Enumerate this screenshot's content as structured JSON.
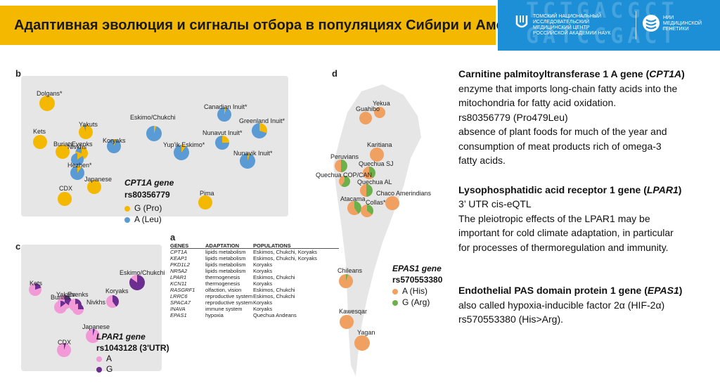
{
  "header": {
    "title": "Адаптивная эволюция и сигналы отбора в популяциях Сибири и Америки",
    "dna_text": "TCTGACGCT\nGATCCGACT\nGTGACGACG",
    "center_name": "ТОМСКИЙ НАЦИОНАЛЬНЫЙ ИССЛЕДОВАТЕЛЬСКИЙ МЕДИЦИНСКИЙ ЦЕНТР РОССИЙСКОЙ АКАДЕМИИ НАУК",
    "nia_name": "НИИ МЕДИЦИНСКОЙ ГЕНЕТИКИ"
  },
  "colors": {
    "title_bar": "#f5b800",
    "brand": "#1d8fd6",
    "pro": "#f5b800",
    "leu": "#5a9ad5",
    "A_lpar": "#f29ad8",
    "G_lpar": "#6b2d8f",
    "his": "#f0a060",
    "arg": "#6cb04a"
  },
  "panel_b": {
    "label": "b",
    "gene": "CPT1A gene",
    "snp": "rs80356779",
    "legend": [
      "G (Pro)",
      "A (Leu)"
    ],
    "pops": [
      {
        "name": "Dolgans*",
        "G": 1.0
      },
      {
        "name": "Kets",
        "G": 1.0
      },
      {
        "name": "Yakuts",
        "G": 0.95
      },
      {
        "name": "Buriats",
        "G": 1.0
      },
      {
        "name": "Evenks",
        "G": 0.8
      },
      {
        "name": "Nivkhs",
        "G": 0.15
      },
      {
        "name": "Hezhen*",
        "G": 0.1
      },
      {
        "name": "Koryaks",
        "G": 0.05
      },
      {
        "name": "Eskimo/Chukchi",
        "G": 0.05
      },
      {
        "name": "Japanese",
        "G": 1.0
      },
      {
        "name": "CDX",
        "G": 1.0
      },
      {
        "name": "Yup'ik Eskimo*",
        "G": 0.1
      },
      {
        "name": "Canadian Inuit*",
        "G": 0.05
      },
      {
        "name": "Nunavut Inuit*",
        "G": 0.25
      },
      {
        "name": "Greenland Inuit*",
        "G": 0.3
      },
      {
        "name": "Nunavik Inuit*",
        "G": 0.05
      },
      {
        "name": "Pima",
        "G": 1.0
      }
    ]
  },
  "panel_c": {
    "label": "c",
    "gene": "LPAR1 gene",
    "snp": "rs1043128 (3'UTR)",
    "legend": [
      "A",
      "G"
    ],
    "pops": [
      {
        "name": "Kets",
        "G": 0.2
      },
      {
        "name": "Yakuts",
        "G": 0.35
      },
      {
        "name": "Eskimo/Chukchi",
        "G": 0.85
      },
      {
        "name": "Buriats",
        "G": 0.15
      },
      {
        "name": "Evenks",
        "G": 0.3
      },
      {
        "name": "Nivkhs",
        "G": 0.25
      },
      {
        "name": "Koryaks",
        "G": 0.4
      },
      {
        "name": "Japanese",
        "G": 0.05
      },
      {
        "name": "CDX",
        "G": 0.05
      }
    ]
  },
  "panel_d": {
    "label": "d",
    "gene": "EPAS1 gene",
    "snp": "rs570553380",
    "legend": [
      "A (His)",
      "G (Arg)"
    ],
    "pops": [
      {
        "name": "Yekua",
        "G": 0.0
      },
      {
        "name": "Guahibo",
        "G": 0.0
      },
      {
        "name": "Karitiana",
        "G": 0.0
      },
      {
        "name": "Peruvians",
        "G": 0.5
      },
      {
        "name": "Quechua SJ",
        "G": 0.4
      },
      {
        "name": "Quechua COP/CAN",
        "G": 0.6
      },
      {
        "name": "Quechua AL",
        "G": 0.5
      },
      {
        "name": "Atacama",
        "G": 0.4
      },
      {
        "name": "Collas*",
        "G": 0.35
      },
      {
        "name": "Chaco Amerindians",
        "G": 0.0
      },
      {
        "name": "Chileans",
        "G": 0.05
      },
      {
        "name": "Kawesqar",
        "G": 0.0
      },
      {
        "name": "Yagan",
        "G": 0.0
      }
    ]
  },
  "table_a": {
    "label": "a",
    "headers": [
      "GENES",
      "ADAPTATION",
      "POPULATIONS"
    ],
    "rows": [
      [
        "CPT1A",
        "lipids metabolism",
        "Eskimos, Chukchi, Koryaks"
      ],
      [
        "KEAP1",
        "lipids metabolism",
        "Eskimos, Chukchi, Koryaks"
      ],
      [
        "PKD1L2",
        "lipids metabolism",
        "Koryaks"
      ],
      [
        "NR5A2",
        "lipids metabolism",
        "Koryaks"
      ],
      [
        "LPAR1",
        "thermogenesis",
        "Eskimos, Chukchi"
      ],
      [
        "KCN11",
        "thermogenesis",
        "Koryaks"
      ],
      [
        "RASGRF1",
        "olfaction, vision",
        "Eskimos, Chukchi"
      ],
      [
        "LRRC6",
        "reproductive system",
        "Eskimos, Chukchi"
      ],
      [
        "SPACA7",
        "reproductive system",
        "Koryaks"
      ],
      [
        "INAVA",
        "immune system",
        "Koryaks"
      ],
      [
        "EPAS1",
        "hypoxia",
        "Quechua Andeans"
      ]
    ]
  },
  "right_text": {
    "cpt1a_title": "Carnitine palmitoyltransferase 1 A gene (",
    "cpt1a_gene": "CPT1A",
    "cpt1a_close": ")",
    "cpt1a_l1": "enzyme that imports long-chain fatty acids into the",
    "cpt1a_l2": "mitochondria for fatty acid oxidation.",
    "cpt1a_l3": "rs80356779 (Pro479Leu)",
    "cpt1a_l4": "absence of plant foods for much of the year and",
    "cpt1a_l5": "consumption of meat products rich of omega-3",
    "cpt1a_l6": "fatty acids.",
    "lpar1_title": "Lysophosphatidic acid receptor 1 gene (",
    "lpar1_gene": "LPAR1",
    "lpar1_close": ")",
    "lpar1_l1": "3’ UTR cis-eQTL",
    "lpar1_l2": "The pleiotropic effects of the LPAR1 may be",
    "lpar1_l3": "important for cold climate adaptation, in particular",
    "lpar1_l4": "for processes of thermoregulation and immunity.",
    "epas1_title": "Endothelial PAS domain protein 1 gene (",
    "epas1_gene": "EPAS1",
    "epas1_close": ")",
    "epas1_l1": "also called hypoxia-inducible factor 2α (HIF-2α)",
    "epas1_l2": "rs570553380 (His>Arg)."
  }
}
